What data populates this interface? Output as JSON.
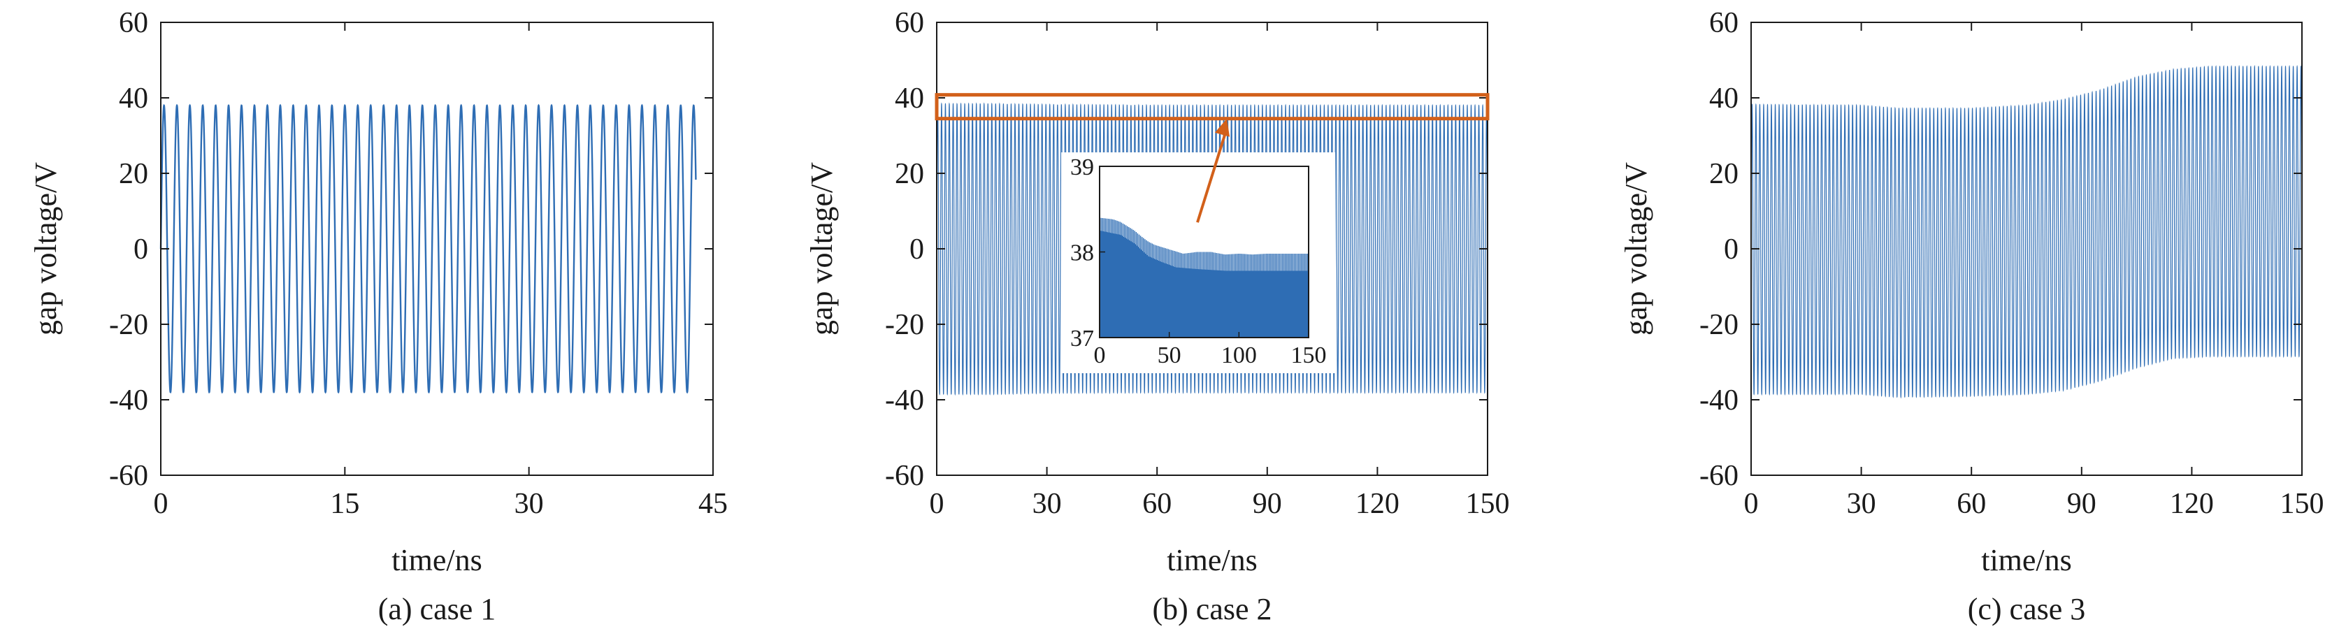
{
  "colors": {
    "signal": "#2e6db4",
    "highlight": "#d2601a",
    "axis": "#1a1a1a"
  },
  "chart_data": [
    {
      "type": "line",
      "id": "a",
      "caption": "(a) case 1",
      "xlabel": "time/ns",
      "ylabel": "gap voltage/V",
      "xlim": [
        0,
        45
      ],
      "ylim": [
        -60,
        60
      ],
      "xticks": [
        0,
        15,
        30,
        45
      ],
      "yticks": [
        -60,
        -40,
        -20,
        0,
        20,
        40,
        60
      ],
      "series": [
        {
          "signal": "sine",
          "amplitude": 38,
          "frequency_ghz": 0.95,
          "t_start": 0,
          "t_end": 43.6,
          "envelope": [
            [
              0,
              -38,
              38
            ],
            [
              43.6,
              -38,
              38
            ]
          ]
        }
      ]
    },
    {
      "type": "line",
      "id": "b",
      "caption": "(b) case 2",
      "xlabel": "time/ns",
      "ylabel": "gap voltage/V",
      "xlim": [
        0,
        150
      ],
      "ylim": [
        -60,
        60
      ],
      "xticks": [
        0,
        30,
        60,
        90,
        120,
        150
      ],
      "yticks": [
        -60,
        -40,
        -20,
        0,
        20,
        40,
        60
      ],
      "series": [
        {
          "signal": "sine",
          "frequency_ghz": 0.95,
          "t_start": 0,
          "t_end": 150,
          "envelope": [
            [
              0,
              -38.5,
              38.4
            ],
            [
              15,
              -38.5,
              38.4
            ],
            [
              30,
              -38.2,
              38.2
            ],
            [
              60,
              -38.1,
              38.0
            ],
            [
              90,
              -38.1,
              38.0
            ],
            [
              150,
              -38.1,
              38.0
            ]
          ]
        }
      ],
      "highlight_box": {
        "x": [
          0,
          150
        ],
        "y": [
          34.5,
          40.8
        ]
      },
      "arrow": {
        "from": [
          71,
          7
        ],
        "to": [
          79,
          34.5
        ]
      },
      "inset": {
        "xlim": [
          0,
          150
        ],
        "ylim": [
          37,
          39
        ],
        "xticks": [
          0,
          50,
          100,
          150
        ],
        "yticks": [
          37,
          38,
          39
        ],
        "peaks": [
          [
            0,
            38.4
          ],
          [
            10,
            38.38
          ],
          [
            15,
            38.35
          ],
          [
            20,
            38.3
          ],
          [
            25,
            38.25
          ],
          [
            30,
            38.18
          ],
          [
            35,
            38.12
          ],
          [
            40,
            38.08
          ],
          [
            50,
            38.03
          ],
          [
            60,
            37.98
          ],
          [
            70,
            38.0
          ],
          [
            80,
            38.0
          ],
          [
            90,
            37.97
          ],
          [
            100,
            37.98
          ],
          [
            110,
            37.97
          ],
          [
            120,
            37.98
          ],
          [
            130,
            37.98
          ],
          [
            140,
            37.98
          ],
          [
            150,
            37.98
          ]
        ],
        "troughs": [
          [
            0,
            38.25
          ],
          [
            15,
            38.2
          ],
          [
            25,
            38.1
          ],
          [
            35,
            37.95
          ],
          [
            45,
            37.88
          ],
          [
            55,
            37.82
          ],
          [
            70,
            37.8
          ],
          [
            90,
            37.78
          ],
          [
            120,
            37.78
          ],
          [
            150,
            37.78
          ]
        ]
      }
    },
    {
      "type": "line",
      "id": "c",
      "caption": "(c) case 3",
      "xlabel": "time/ns",
      "ylabel": "gap voltage/V",
      "xlim": [
        0,
        150
      ],
      "ylim": [
        -60,
        60
      ],
      "xticks": [
        0,
        30,
        60,
        90,
        120,
        150
      ],
      "yticks": [
        -60,
        -40,
        -20,
        0,
        20,
        40,
        60
      ],
      "series": [
        {
          "signal": "sine",
          "frequency_ghz": 0.95,
          "t_start": 0,
          "t_end": 150,
          "envelope": [
            [
              0,
              -38.5,
              38.2
            ],
            [
              30,
              -38.5,
              38.0
            ],
            [
              40,
              -39.3,
              37.2
            ],
            [
              60,
              -39.0,
              37.2
            ],
            [
              75,
              -38.5,
              38.0
            ],
            [
              85,
              -37.5,
              39.5
            ],
            [
              95,
              -35,
              42
            ],
            [
              105,
              -31.5,
              45.5
            ],
            [
              115,
              -29,
              47.5
            ],
            [
              125,
              -28.5,
              48.3
            ],
            [
              150,
              -28.5,
              48.3
            ]
          ]
        }
      ]
    }
  ]
}
